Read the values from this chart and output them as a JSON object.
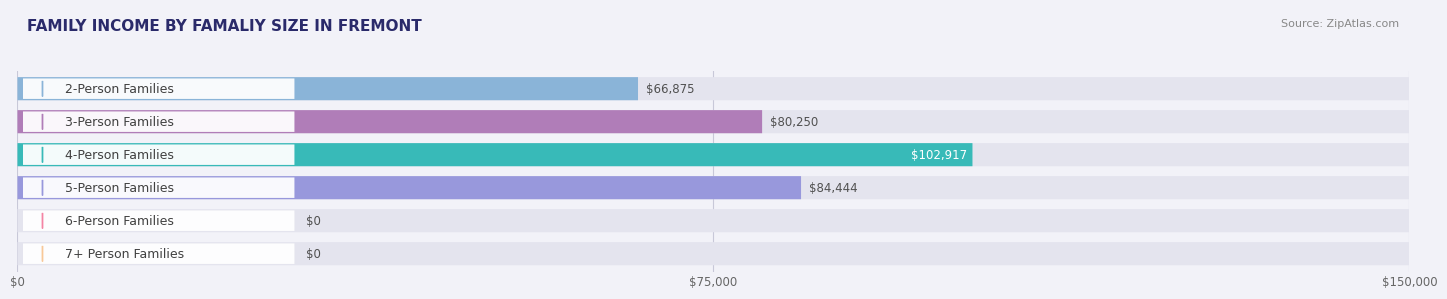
{
  "title": "FAMILY INCOME BY FAMALIY SIZE IN FREMONT",
  "source": "Source: ZipAtlas.com",
  "categories": [
    "2-Person Families",
    "3-Person Families",
    "4-Person Families",
    "5-Person Families",
    "6-Person Families",
    "7+ Person Families"
  ],
  "values": [
    66875,
    80250,
    102917,
    84444,
    0,
    0
  ],
  "bar_colors": [
    "#8ab4d8",
    "#b07db8",
    "#38bab8",
    "#9898dc",
    "#f484a4",
    "#f8c898"
  ],
  "value_labels": [
    "$66,875",
    "$80,250",
    "$102,917",
    "$84,444",
    "$0",
    "$0"
  ],
  "xmax": 150000,
  "xticks": [
    0,
    75000,
    150000
  ],
  "xtick_labels": [
    "$0",
    "$75,000",
    "$150,000"
  ],
  "background_color": "#f2f2f8",
  "bar_bg_color": "#e4e4ee",
  "title_fontsize": 11,
  "source_fontsize": 8,
  "label_fontsize": 9,
  "value_fontsize": 8.5
}
